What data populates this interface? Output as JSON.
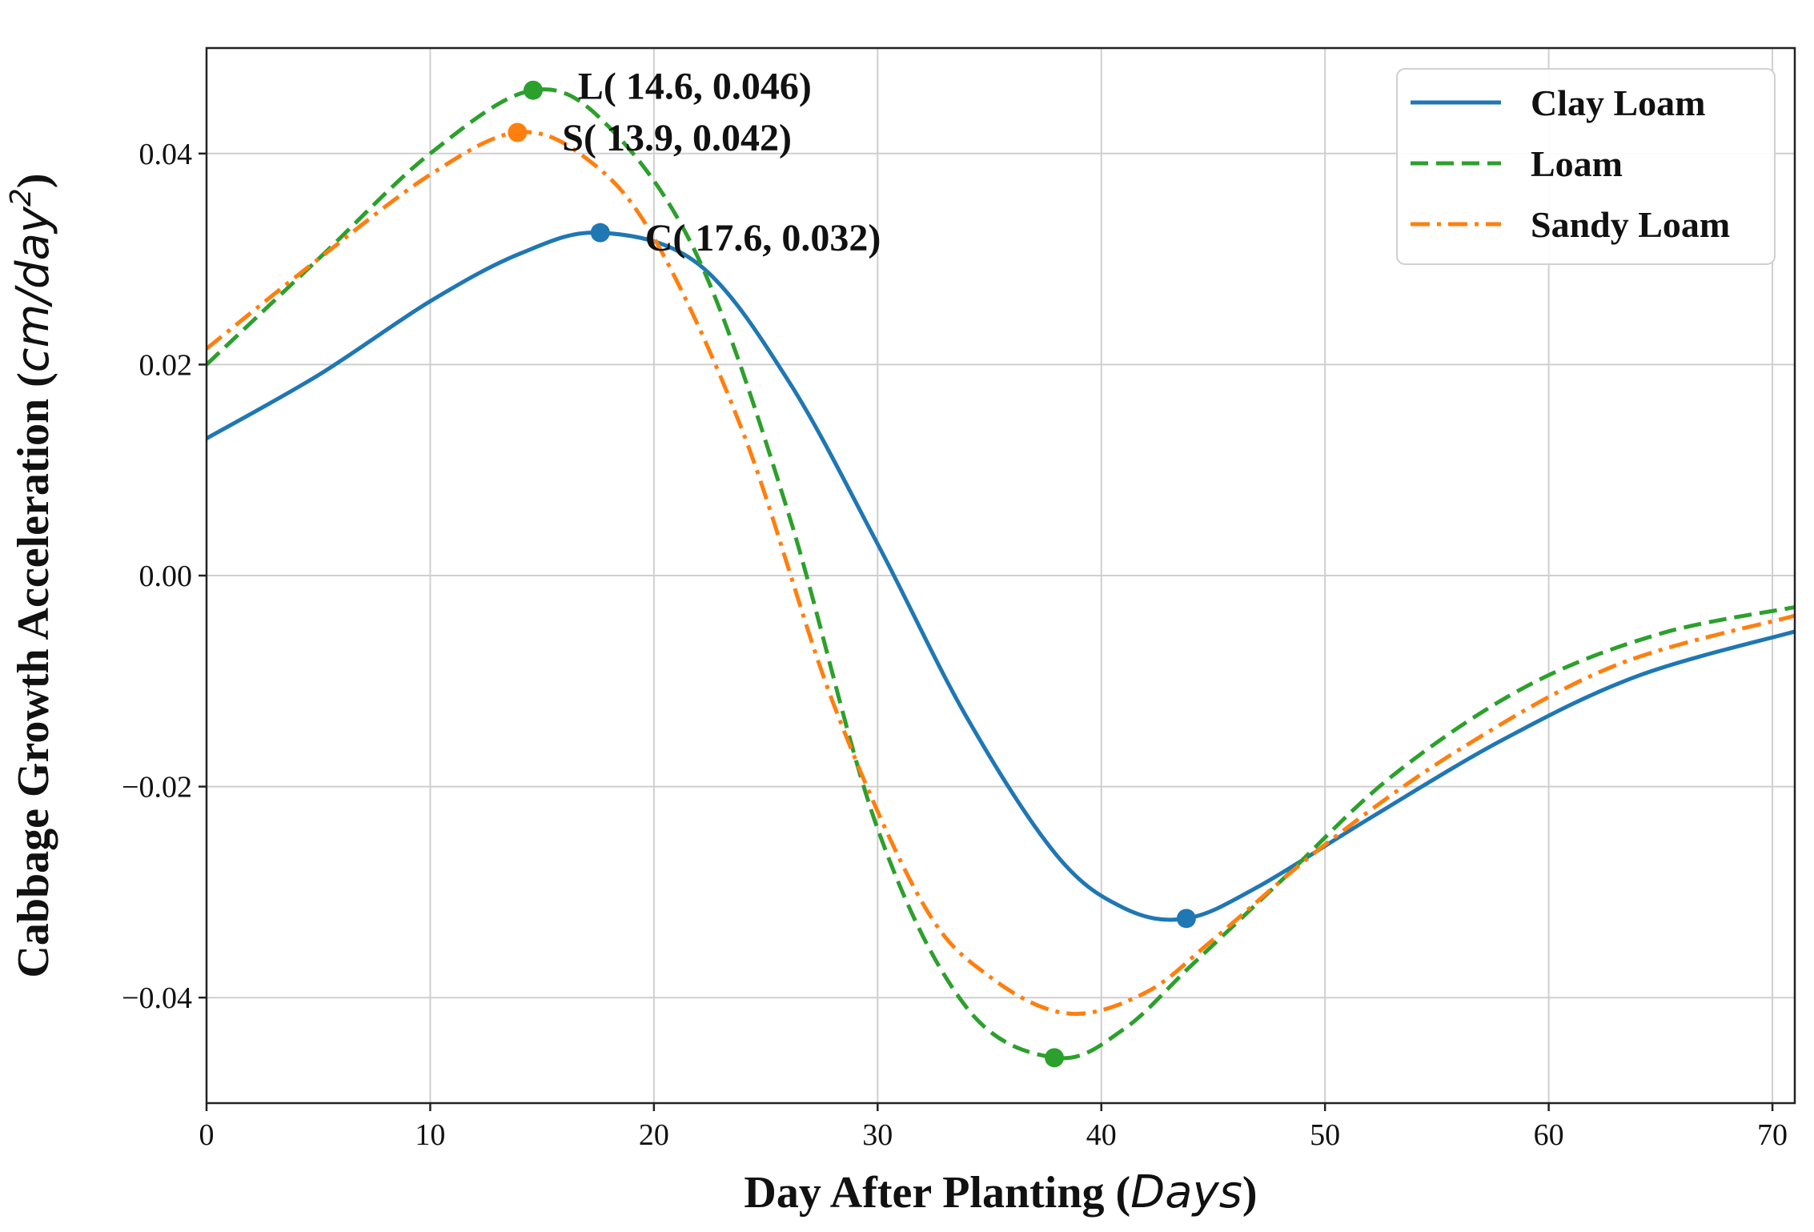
{
  "chart_data": {
    "type": "line",
    "title": "",
    "xlabel_main": "Day After Planting ",
    "xlabel_unit": "Days",
    "ylabel_main": "Cabbage Growth Acceleration ",
    "ylabel_unit": "cm/day",
    "ylabel_exp": "2",
    "xlim": [
      0,
      71
    ],
    "ylim": [
      -0.05,
      0.05
    ],
    "xticks": [
      0,
      10,
      20,
      30,
      40,
      50,
      60,
      70
    ],
    "xtick_labels": [
      "0",
      "10",
      "20",
      "30",
      "40",
      "50",
      "60",
      "70"
    ],
    "yticks": [
      -0.04,
      -0.02,
      0.0,
      0.02,
      0.04
    ],
    "ytick_labels": [
      "−0.04",
      "−0.02",
      "0.00",
      "0.02",
      "0.04"
    ],
    "grid": true,
    "legend_position": "top-right",
    "series": [
      {
        "name": "Clay Loam",
        "color": "#1f77b4",
        "style": "solid",
        "x": [
          0,
          5,
          10,
          14,
          17.6,
          22,
          26,
          30,
          34,
          38,
          41,
          43.8,
          47,
          52,
          58,
          64,
          71
        ],
        "y": [
          0.013,
          0.019,
          0.026,
          0.0305,
          0.0325,
          0.0295,
          0.0185,
          0.003,
          -0.0135,
          -0.0265,
          -0.0315,
          -0.0325,
          -0.0295,
          -0.023,
          -0.0155,
          -0.0095,
          -0.0053
        ]
      },
      {
        "name": "Loam",
        "color": "#2ca02c",
        "style": "dashed",
        "x": [
          0,
          5,
          10,
          14.6,
          18,
          22,
          26,
          30,
          34,
          38,
          41,
          44,
          48,
          53,
          59,
          65,
          71
        ],
        "y": [
          0.02,
          0.03,
          0.04,
          0.046,
          0.0425,
          0.03,
          0.006,
          -0.024,
          -0.041,
          -0.0457,
          -0.043,
          -0.037,
          -0.029,
          -0.019,
          -0.0105,
          -0.0055,
          -0.003
        ]
      },
      {
        "name": "Sandy Loam",
        "color": "#ff7f0e",
        "style": "dashdot",
        "x": [
          0,
          5,
          10,
          13.9,
          17,
          20,
          24,
          28,
          32,
          35,
          38.5,
          42,
          45,
          50,
          56,
          63,
          71
        ],
        "y": [
          0.0215,
          0.03,
          0.038,
          0.042,
          0.0395,
          0.032,
          0.0135,
          -0.012,
          -0.031,
          -0.038,
          -0.0415,
          -0.0395,
          -0.0345,
          -0.0255,
          -0.0165,
          -0.0085,
          -0.0038
        ]
      }
    ],
    "markers": [
      {
        "series": "Clay Loam",
        "x": 17.6,
        "y": 0.0325,
        "color": "#1f77b4"
      },
      {
        "series": "Clay Loam",
        "x": 43.8,
        "y": -0.0325,
        "color": "#1f77b4"
      },
      {
        "series": "Loam",
        "x": 14.6,
        "y": 0.046,
        "color": "#2ca02c"
      },
      {
        "series": "Loam",
        "x": 37.9,
        "y": -0.0457,
        "color": "#2ca02c"
      },
      {
        "series": "Sandy Loam",
        "x": 13.9,
        "y": 0.042,
        "color": "#ff7f0e"
      }
    ],
    "annotations": [
      {
        "text": "L( 14.6, 0.046)",
        "x": 16.6,
        "y": 0.0464
      },
      {
        "text": "S( 13.9, 0.042)",
        "x": 15.9,
        "y": 0.0415
      },
      {
        "text": "C( 17.6, 0.032)",
        "x": 19.6,
        "y": 0.032
      }
    ]
  }
}
